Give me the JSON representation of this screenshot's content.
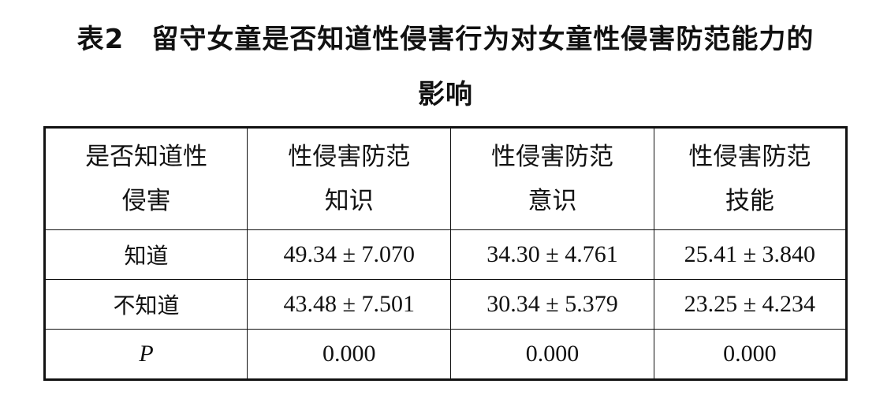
{
  "title": {
    "line1": "表2　留守女童是否知道性侵害行为对女童性侵害防范能力的",
    "line2": "影响"
  },
  "table": {
    "headers": [
      {
        "line1": "是否知道性",
        "line2": "侵害"
      },
      {
        "line1": "性侵害防范",
        "line2": "知识"
      },
      {
        "line1": "性侵害防范",
        "line2": "意识"
      },
      {
        "line1": "性侵害防范",
        "line2": "技能"
      }
    ],
    "rows": [
      {
        "label": "知道",
        "cells": [
          "49.34 ± 7.070",
          "34.30 ± 4.761",
          "25.41 ± 3.840"
        ]
      },
      {
        "label": "不知道",
        "cells": [
          "43.48 ± 7.501",
          "30.34 ± 5.379",
          "23.25 ± 4.234"
        ]
      },
      {
        "label": "P",
        "cells": [
          "0.000",
          "0.000",
          "0.000"
        ]
      }
    ]
  }
}
